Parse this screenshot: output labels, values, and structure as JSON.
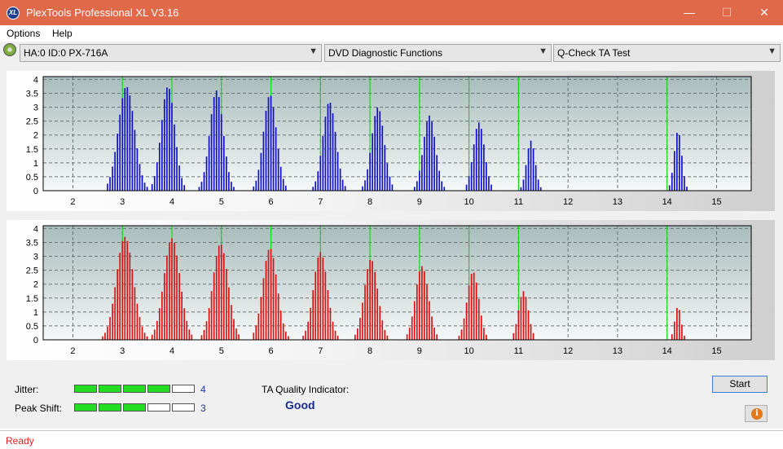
{
  "window": {
    "title": "PlexTools Professional XL V3.16",
    "icon": "XL",
    "minimize": "—",
    "maximize": "☐",
    "close": "✕"
  },
  "menu": {
    "options": "Options",
    "help": "Help"
  },
  "toolbar": {
    "drive": "HA:0 ID:0  PX-716A",
    "function": "DVD Diagnostic Functions",
    "test": "Q-Check TA Test"
  },
  "colors": {
    "land_bars": "#1010cc",
    "pit_bars": "#dd1111",
    "markers": "#00dd00"
  },
  "results": {
    "jitter_label": "Jitter:",
    "jitter_value": "4",
    "jitter_level": 4,
    "peak_label": "Peak Shift:",
    "peak_value": "3",
    "peak_level": 3,
    "quality_label": "TA Quality Indicator:",
    "quality_value": "Good",
    "start": "Start"
  },
  "status": "Ready",
  "chart_data": [
    {
      "type": "bar",
      "series_color": "blue",
      "x_ticks": [
        "2",
        "3",
        "4",
        "5",
        "6",
        "7",
        "8",
        "9",
        "10",
        "11",
        "12",
        "13",
        "14",
        "15"
      ],
      "y_ticks": [
        "0",
        "0.5",
        "1",
        "1.5",
        "2",
        "2.5",
        "3",
        "3.5",
        "4"
      ],
      "xlim": [
        1.4,
        15.7
      ],
      "ylim": [
        0,
        4.1
      ],
      "green_markers": [
        3,
        4,
        5,
        6,
        7,
        8,
        9,
        10,
        11,
        14
      ],
      "peaks": [
        {
          "center": 3.08,
          "height": 3.75,
          "width": 0.36
        },
        {
          "center": 3.92,
          "height": 3.75,
          "width": 0.3
        },
        {
          "center": 4.9,
          "height": 3.6,
          "width": 0.3
        },
        {
          "center": 5.98,
          "height": 3.45,
          "width": 0.29
        },
        {
          "center": 7.18,
          "height": 3.2,
          "width": 0.29
        },
        {
          "center": 8.16,
          "height": 3.0,
          "width": 0.28
        },
        {
          "center": 9.2,
          "height": 2.7,
          "width": 0.27
        },
        {
          "center": 10.2,
          "height": 2.45,
          "width": 0.25
        },
        {
          "center": 11.25,
          "height": 1.8,
          "width": 0.19
        },
        {
          "center": 14.22,
          "height": 2.15,
          "width": 0.17
        }
      ]
    },
    {
      "type": "bar",
      "series_color": "red",
      "x_ticks": [
        "2",
        "3",
        "4",
        "5",
        "6",
        "7",
        "8",
        "9",
        "10",
        "11",
        "12",
        "13",
        "14",
        "15"
      ],
      "y_ticks": [
        "0",
        "0.5",
        "1",
        "1.5",
        "2",
        "2.5",
        "3",
        "3.5",
        "4"
      ],
      "xlim": [
        1.4,
        15.7
      ],
      "ylim": [
        0,
        4.1
      ],
      "green_markers": [
        3,
        4,
        5,
        6,
        7,
        8,
        9,
        10,
        11,
        14
      ],
      "peaks": [
        {
          "center": 3.05,
          "height": 3.7,
          "width": 0.38
        },
        {
          "center": 4.0,
          "height": 3.65,
          "width": 0.36
        },
        {
          "center": 4.98,
          "height": 3.45,
          "width": 0.34
        },
        {
          "center": 5.98,
          "height": 3.3,
          "width": 0.32
        },
        {
          "center": 7.0,
          "height": 3.15,
          "width": 0.31
        },
        {
          "center": 8.02,
          "height": 2.9,
          "width": 0.3
        },
        {
          "center": 9.05,
          "height": 2.65,
          "width": 0.29
        },
        {
          "center": 10.08,
          "height": 2.45,
          "width": 0.26
        },
        {
          "center": 11.1,
          "height": 1.75,
          "width": 0.22
        },
        {
          "center": 14.22,
          "height": 1.2,
          "width": 0.14
        }
      ]
    }
  ]
}
